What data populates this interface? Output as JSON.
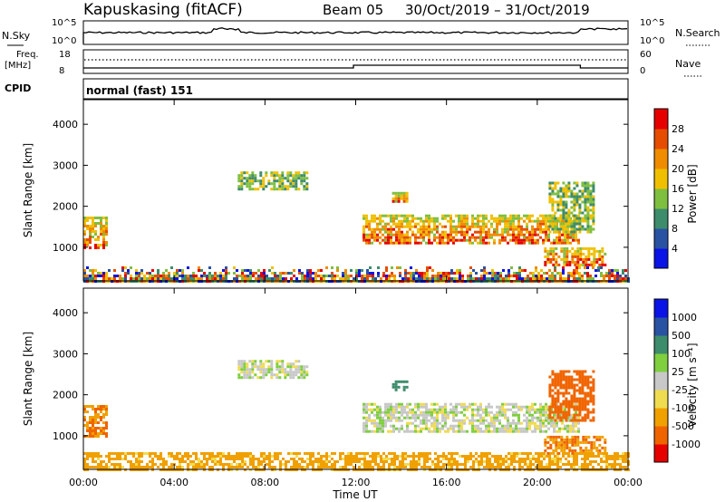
{
  "header": {
    "station": "Kapuskasing (fitACF)",
    "beam": "Beam 05",
    "dates": "30/Oct/2019 – 31/Oct/2019"
  },
  "top_panels": {
    "nsky_label": "N.Sky",
    "nsearch_label": "N.Search",
    "tick_1e5": "10^5",
    "tick_1e0": "10^0",
    "freq_label": "Freq.",
    "freq_unit": "[MHz]",
    "freq_ticks": [
      "18",
      "8"
    ],
    "nave_label": "Nave",
    "nave_ticks": [
      "60",
      "0"
    ],
    "cpid_label": "CPID",
    "cpid_value": "normal (fast) 151"
  },
  "colors": {
    "power_scale": [
      "#0a14e6",
      "#2952a3",
      "#3d8c6b",
      "#7fbf3f",
      "#f0c000",
      "#f08c00",
      "#e64d00",
      "#e60000"
    ],
    "velocity_scale": [
      "#e60000",
      "#f06400",
      "#f0a000",
      "#f0dc50",
      "#c8c8c8",
      "#7fcf3f",
      "#3d8c6b",
      "#2952a3",
      "#0a14e6"
    ]
  },
  "chart_data": [
    {
      "type": "heatmap",
      "quantity": "Power",
      "ylabel": "Slant Range [km]",
      "ylim": [
        180,
        4600
      ],
      "yticks": [
        "1000",
        "2000",
        "3000",
        "4000"
      ],
      "xlim_hours": [
        0,
        24
      ],
      "colorbar": {
        "label": "Power [dB]",
        "ticks": [
          "4",
          "8",
          "12",
          "16",
          "20",
          "24",
          "28"
        ],
        "range": [
          0,
          32
        ]
      },
      "echo_regions": [
        {
          "t0": 0.0,
          "t1": 1.0,
          "r0": 1000,
          "r1": 1750,
          "level": "high"
        },
        {
          "t0": 0.0,
          "t1": 24.0,
          "r0": 180,
          "r1": 600,
          "level": "ground-scatter"
        },
        {
          "t0": 6.8,
          "t1": 9.8,
          "r0": 2450,
          "r1": 2850,
          "level": "medium"
        },
        {
          "t0": 12.3,
          "t1": 21.8,
          "r0": 1100,
          "r1": 1800,
          "level": "high"
        },
        {
          "t0": 13.6,
          "t1": 14.3,
          "r0": 2100,
          "r1": 2350,
          "level": "high"
        },
        {
          "t0": 20.3,
          "t1": 23.0,
          "r0": 600,
          "r1": 1000,
          "level": "high"
        },
        {
          "t0": 20.5,
          "t1": 22.5,
          "r0": 1400,
          "r1": 2600,
          "level": "medium"
        }
      ]
    },
    {
      "type": "heatmap",
      "quantity": "Velocity",
      "ylabel": "Slant Range [km]",
      "xlabel": "Time UT",
      "ylim": [
        180,
        4600
      ],
      "yticks": [
        "1000",
        "2000",
        "3000",
        "4000"
      ],
      "xticks": [
        "00:00",
        "04:00",
        "08:00",
        "12:00",
        "16:00",
        "20:00",
        "00:00"
      ],
      "colorbar": {
        "label": "Velocity [m s⁻¹]",
        "ticks": [
          "1000",
          "500",
          "100",
          "25",
          "-25",
          "-100",
          "-500",
          "-1000"
        ]
      },
      "echo_regions": [
        {
          "t0": 0.0,
          "t1": 1.0,
          "r0": 1000,
          "r1": 1750,
          "velocity": -300
        },
        {
          "t0": 0.0,
          "t1": 24.0,
          "r0": 180,
          "r1": 600,
          "velocity": -100
        },
        {
          "t0": 6.8,
          "t1": 9.8,
          "r0": 2450,
          "r1": 2850,
          "velocity": 0
        },
        {
          "t0": 12.3,
          "t1": 21.8,
          "r0": 1100,
          "r1": 1800,
          "velocity": 0
        },
        {
          "t0": 13.6,
          "t1": 14.3,
          "r0": 2100,
          "r1": 2350,
          "velocity": 150
        },
        {
          "t0": 20.3,
          "t1": 23.0,
          "r0": 600,
          "r1": 1000,
          "velocity": -300
        },
        {
          "t0": 20.5,
          "t1": 22.5,
          "r0": 1400,
          "r1": 2600,
          "velocity": -400
        }
      ]
    }
  ]
}
